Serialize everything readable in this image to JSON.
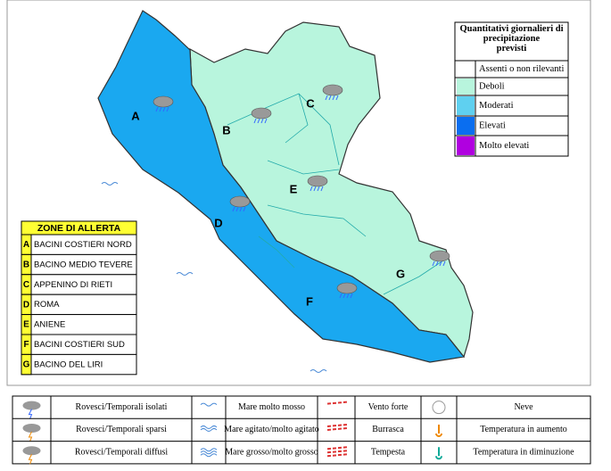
{
  "map": {
    "zones": [
      {
        "label": "A",
        "color": "#1aa8f0"
      },
      {
        "label": "B",
        "color": "#b8f5dd"
      },
      {
        "label": "C",
        "color": "#b8f5dd"
      },
      {
        "label": "D",
        "color": "#1aa8f0"
      },
      {
        "label": "E",
        "color": "#b8f5dd"
      },
      {
        "label": "F",
        "color": "#1aa8f0"
      },
      {
        "label": "G",
        "color": "#b8f5dd"
      }
    ]
  },
  "precipitation_legend": {
    "title": "Quantitativi giornalieri di precipitazione previsti",
    "items": [
      {
        "label": "Assenti o non rilevanti",
        "color": "#ffffff"
      },
      {
        "label": "Deboli",
        "color": "#b8f5dd"
      },
      {
        "label": "Moderati",
        "color": "#5fd0f0"
      },
      {
        "label": "Elevati",
        "color": "#0a6ef0"
      },
      {
        "label": "Molto elevati",
        "color": "#b000e0"
      }
    ]
  },
  "alert_zones": {
    "title": "ZONE DI ALLERTA",
    "rows": [
      {
        "code": "A",
        "name": "BACINI COSTIERI NORD"
      },
      {
        "code": "B",
        "name": "BACINO MEDIO TEVERE"
      },
      {
        "code": "C",
        "name": "APPENINO DI RIETI"
      },
      {
        "code": "D",
        "name": "ROMA"
      },
      {
        "code": "E",
        "name": "ANIENE"
      },
      {
        "code": "F",
        "name": "BACINI COSTIERI SUD"
      },
      {
        "code": "G",
        "name": "BACINO DEL LIRI"
      }
    ]
  },
  "symbol_legend": {
    "rows": [
      [
        "Rovesci/Temporali isolati",
        "Mare molto mosso",
        "Vento forte",
        "Neve"
      ],
      [
        "Rovesci/Temporali sparsi",
        "Mare agitato/molto agitato",
        "Burrasca",
        "Temperatura in aumento"
      ],
      [
        "Rovesci/Temporali diffusi",
        "Mare grosso/molto grosso",
        "Tempesta",
        "Temperatura in diminuzione"
      ]
    ]
  }
}
